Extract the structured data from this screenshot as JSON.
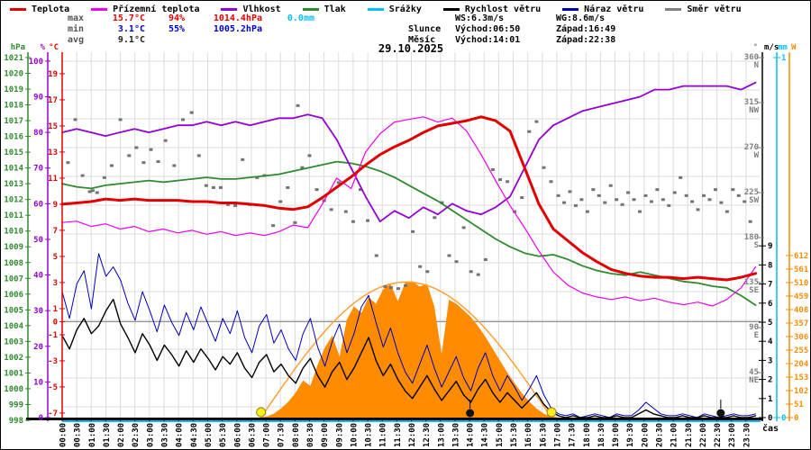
{
  "title_date": "29.10.2025",
  "legend": {
    "items": [
      {
        "label": "Teplota",
        "color": "#e00000"
      },
      {
        "label": "Přízemní teplota",
        "color": "#ee00ee"
      },
      {
        "label": "Vlhkost",
        "color": "#9400d3"
      },
      {
        "label": "Tlak",
        "color": "#2e8b2e"
      },
      {
        "label": "Srážky",
        "color": "#00bfff"
      },
      {
        "label": "Rychlost větru",
        "color": "#000000"
      },
      {
        "label": "Náraz větru",
        "color": "#0000bb"
      },
      {
        "label": "Směr větru",
        "color": "#808080"
      }
    ]
  },
  "stats": {
    "max": {
      "label": "max",
      "temp": "15.7°C",
      "hum": "94%",
      "press": "1014.4hPa",
      "rain": "0.0mm"
    },
    "min": {
      "label": "min",
      "temp": "3.1°C",
      "hum": "55%",
      "press": "1005.2hPa"
    },
    "avg": {
      "label": "avg",
      "temp": "9.1°C"
    }
  },
  "wind_summary": {
    "ws": "WS:6.3m/s",
    "wg": "WG:8.6m/s"
  },
  "sun": {
    "label": "Slunce",
    "rise": "Východ:06:50",
    "set": "Západ:16:49"
  },
  "moon": {
    "label": "Měsíc",
    "rise": "Východ:14:01",
    "set": "Západ:22:38"
  },
  "colors": {
    "temperature": "#e00000",
    "ground_temperature": "#ee00ee",
    "humidity": "#9400d3",
    "pressure": "#2e8b2e",
    "precipitation": "#00bfff",
    "wind_speed": "#000000",
    "wind_gust": "#0000bb",
    "wind_direction": "#737373",
    "solar": "#ff8c00",
    "solar_theoretical": "#ffa033",
    "axis_hpa": "#2e8b2e",
    "axis_pct": "#9400d3",
    "axis_temp": "#e00000",
    "axis_dir": "#808080",
    "axis_ms": "#000000",
    "axis_mm": "#00bfff",
    "axis_w": "#ff8c00",
    "grid": "#dcdcdc",
    "zero_line": "#808080",
    "stat_label": "#555555",
    "stat_max": "#e00000",
    "stat_min": "#0000cc",
    "stat_avg": "#222222",
    "sun_marker": "#ffee22",
    "moon_marker": "#111111"
  },
  "chart_data": {
    "type": "line",
    "title": "29.10.2025",
    "x_range": 24,
    "units": {
      "hpa": "hPa",
      "pct": "%",
      "temp": "°C",
      "dir": "°",
      "ms": "m/s",
      "mm": "mm",
      "w": "W",
      "time": "čas"
    },
    "axes": {
      "temp": {
        "min": -7.35,
        "max": 20.65
      },
      "pct": {
        "min": 0,
        "max": 102.5
      },
      "hpa": {
        "min": 998.17,
        "max": 1021.34
      },
      "dir": {
        "min": 0,
        "max": 365.4
      },
      "ms": {
        "min": 0,
        "max": 19.15
      },
      "mm": {
        "min": 0,
        "max": 1.015
      },
      "w": {
        "min": 0,
        "max": 1380
      }
    },
    "hpa_ticks": [
      1021,
      1020,
      1019,
      1018,
      1017,
      1016,
      1015,
      1014,
      1013,
      1012,
      1011,
      1010,
      1009,
      1008,
      1007,
      1006,
      1005,
      1004,
      1003,
      1002,
      1001,
      1000,
      999,
      998
    ],
    "pct_ticks": [
      100,
      90,
      80,
      70,
      60,
      50,
      40,
      30,
      20,
      10,
      0
    ],
    "temp_ticks": [
      19,
      17,
      15,
      13,
      11,
      9,
      7,
      5,
      3,
      1,
      0,
      -1,
      -3,
      -5,
      -7
    ],
    "dir_ticks": [
      [
        360,
        "N"
      ],
      [
        315,
        "NW"
      ],
      [
        270,
        "W"
      ],
      [
        225,
        "SW"
      ],
      [
        180,
        "S"
      ],
      [
        135,
        "SE"
      ],
      [
        90,
        "E"
      ],
      [
        45,
        "NE"
      ]
    ],
    "ms_ticks": [
      9,
      8,
      7,
      6,
      5,
      4,
      3,
      2,
      1,
      0
    ],
    "mm_ticks": [
      1,
      0
    ],
    "w_ticks": [
      612,
      561,
      510,
      459,
      408,
      357,
      306,
      255,
      204,
      153,
      102,
      51,
      0
    ],
    "x_tick_labels": [
      "00:00",
      "00:30",
      "01:00",
      "01:30",
      "02:00",
      "02:30",
      "03:00",
      "03:30",
      "04:00",
      "04:30",
      "05:00",
      "05:30",
      "06:00",
      "06:30",
      "07:00",
      "07:30",
      "08:00",
      "08:30",
      "09:00",
      "09:30",
      "10:00",
      "10:30",
      "11:00",
      "11:30",
      "12:00",
      "12:30",
      "13:00",
      "13:30",
      "14:00",
      "14:30",
      "15:00",
      "15:30",
      "16:00",
      "16:30",
      "17:00",
      "17:30",
      "18:00",
      "18:30",
      "19:00",
      "19:30",
      "20:00",
      "20:30",
      "21:00",
      "21:30",
      "22:00",
      "22:30",
      "23:00",
      "23:30"
    ],
    "series": {
      "temperature": {
        "axis": "temp",
        "dt": 0.4965,
        "values": [
          9.0,
          9.1,
          9.2,
          9.4,
          9.3,
          9.4,
          9.3,
          9.3,
          9.3,
          9.2,
          9.2,
          9.1,
          9.1,
          9.0,
          8.9,
          8.7,
          8.6,
          8.8,
          9.5,
          10.3,
          11.1,
          12.0,
          12.8,
          13.4,
          13.9,
          14.5,
          15.0,
          15.2,
          15.4,
          15.7,
          15.4,
          14.6,
          11.8,
          9.0,
          7.1,
          6.2,
          5.3,
          4.6,
          4.0,
          3.7,
          3.5,
          3.4,
          3.4,
          3.3,
          3.4,
          3.3,
          3.2,
          3.4,
          3.7
        ]
      },
      "ground_temperature": {
        "axis": "temp",
        "dt": 0.4965,
        "values": [
          7.6,
          7.7,
          7.3,
          7.5,
          7.1,
          7.3,
          6.9,
          7.1,
          6.8,
          7.0,
          6.7,
          6.9,
          6.6,
          6.8,
          6.6,
          6.9,
          7.4,
          7.2,
          9.0,
          11.0,
          10.2,
          13.0,
          14.4,
          15.3,
          15.5,
          15.7,
          15.3,
          15.6,
          14.6,
          12.8,
          10.8,
          8.9,
          7.2,
          5.4,
          3.8,
          2.8,
          2.2,
          1.9,
          1.7,
          1.9,
          1.6,
          1.8,
          1.5,
          1.3,
          1.5,
          1.2,
          1.7,
          2.6,
          4.2
        ]
      },
      "humidity": {
        "axis": "pct",
        "dt": 0.4965,
        "values": [
          80,
          81,
          80,
          79,
          80,
          81,
          80,
          81,
          82,
          82,
          83,
          82,
          83,
          82,
          83,
          84,
          84,
          85,
          84,
          78,
          70,
          62,
          55,
          58,
          56,
          59,
          57,
          60,
          58,
          57,
          59,
          62,
          70,
          78,
          82,
          84,
          86,
          87,
          88,
          89,
          90,
          92,
          92,
          93,
          93,
          93,
          93,
          92,
          94
        ]
      },
      "pressure": {
        "axis": "hpa",
        "dt": 0.4965,
        "values": [
          1013.0,
          1012.8,
          1012.7,
          1012.9,
          1013.0,
          1013.1,
          1013.2,
          1013.1,
          1013.2,
          1013.3,
          1013.4,
          1013.3,
          1013.3,
          1013.4,
          1013.5,
          1013.6,
          1013.8,
          1014.0,
          1014.2,
          1014.4,
          1014.3,
          1014.1,
          1013.8,
          1013.4,
          1012.9,
          1012.4,
          1011.9,
          1011.3,
          1010.7,
          1010.1,
          1009.5,
          1009.0,
          1008.6,
          1008.4,
          1008.5,
          1008.2,
          1007.8,
          1007.5,
          1007.3,
          1007.2,
          1007.4,
          1007.2,
          1007.0,
          1006.8,
          1006.7,
          1006.5,
          1006.4,
          1005.9,
          1005.3
        ]
      },
      "wind_speed": {
        "axis": "ms",
        "dt": 0.2508,
        "values": [
          4.3,
          3.6,
          4.6,
          5.2,
          4.4,
          4.8,
          5.6,
          6.2,
          4.9,
          4.2,
          3.4,
          4.4,
          3.8,
          3.0,
          3.8,
          3.3,
          2.7,
          3.5,
          2.9,
          3.6,
          3.1,
          2.5,
          3.2,
          2.8,
          3.4,
          2.6,
          2.1,
          2.9,
          3.3,
          2.4,
          2.8,
          2.2,
          1.8,
          2.6,
          3.1,
          2.2,
          1.6,
          2.4,
          2.9,
          2.0,
          2.6,
          3.4,
          4.2,
          3.0,
          2.2,
          2.8,
          2.0,
          1.4,
          1.0,
          1.6,
          2.2,
          1.5,
          0.9,
          1.4,
          1.9,
          1.2,
          0.8,
          1.5,
          2.0,
          1.3,
          0.8,
          1.3,
          0.9,
          0.5,
          0.9,
          1.3,
          0.7,
          0.3,
          0.1,
          0.0,
          0.1,
          0.0,
          0.0,
          0.1,
          0.0,
          0.0,
          0.1,
          0.0,
          0.0,
          0.2,
          0.4,
          0.2,
          0.1,
          0.0,
          0.0,
          0.1,
          0.0,
          0.0,
          0.1,
          0.0,
          0.0,
          0.0,
          0.1,
          0.0,
          0.0,
          0.1
        ]
      },
      "wind_gust": {
        "axis": "ms",
        "dt": 0.2508,
        "values": [
          6.6,
          5.2,
          7.0,
          7.7,
          5.7,
          8.6,
          7.4,
          7.9,
          7.2,
          6.0,
          5.1,
          6.6,
          5.6,
          4.5,
          5.9,
          5.0,
          4.3,
          5.5,
          4.6,
          5.8,
          4.9,
          4.0,
          5.2,
          4.4,
          5.6,
          4.2,
          3.4,
          4.8,
          5.4,
          3.9,
          4.6,
          3.6,
          3.0,
          4.4,
          5.2,
          3.7,
          2.7,
          4.0,
          4.9,
          3.4,
          4.4,
          5.8,
          6.4,
          5.0,
          3.7,
          4.7,
          3.4,
          2.4,
          1.8,
          2.8,
          3.8,
          2.6,
          1.6,
          2.4,
          3.2,
          2.1,
          1.4,
          2.6,
          3.4,
          2.2,
          1.4,
          2.2,
          1.6,
          0.9,
          1.5,
          2.2,
          1.2,
          0.5,
          0.2,
          0.1,
          0.2,
          0.0,
          0.1,
          0.2,
          0.1,
          0.0,
          0.2,
          0.1,
          0.1,
          0.4,
          0.8,
          0.5,
          0.2,
          0.1,
          0.1,
          0.2,
          0.1,
          0.0,
          0.2,
          0.1,
          0.0,
          0.1,
          0.2,
          0.1,
          0.1,
          0.2
        ]
      },
      "solar_radiation": {
        "axis": "w",
        "dt": 0.2508,
        "values": [
          0,
          0,
          0,
          0,
          0,
          0,
          0,
          0,
          0,
          0,
          0,
          0,
          0,
          0,
          0,
          0,
          0,
          0,
          0,
          0,
          0,
          0,
          0,
          0,
          0,
          0,
          0,
          0,
          4,
          15,
          35,
          60,
          95,
          140,
          120,
          200,
          265,
          310,
          230,
          370,
          420,
          395,
          455,
          430,
          485,
          505,
          440,
          510,
          515,
          495,
          505,
          420,
          240,
          445,
          430,
          405,
          380,
          345,
          305,
          260,
          215,
          170,
          130,
          92,
          60,
          34,
          15,
          4,
          0,
          0,
          0,
          0,
          0,
          0,
          0,
          0,
          0,
          0,
          0,
          0,
          0,
          0,
          0,
          0,
          0,
          0,
          0,
          0,
          0,
          0,
          0,
          0,
          0,
          0,
          0,
          0
        ]
      },
      "solar_theoretical": {
        "axis": "w",
        "sunrise": 6.833,
        "sunset": 16.817,
        "peak": 512
      },
      "precipitation": {
        "axis": "mm",
        "value": 0
      },
      "wind_direction_points": [
        [
          0.2,
          255
        ],
        [
          0.45,
          298
        ],
        [
          0.7,
          242
        ],
        [
          0.95,
          226
        ],
        [
          1.05,
          227
        ],
        [
          1.2,
          225
        ],
        [
          1.45,
          240
        ],
        [
          1.7,
          252
        ],
        [
          2.0,
          298
        ],
        [
          2.3,
          262
        ],
        [
          2.55,
          270
        ],
        [
          2.8,
          255
        ],
        [
          3.05,
          268
        ],
        [
          3.3,
          256
        ],
        [
          3.55,
          277
        ],
        [
          3.85,
          252
        ],
        [
          4.15,
          298
        ],
        [
          4.45,
          305
        ],
        [
          4.7,
          262
        ],
        [
          4.95,
          232
        ],
        [
          5.2,
          230
        ],
        [
          5.45,
          230
        ],
        [
          5.7,
          213
        ],
        [
          5.95,
          212
        ],
        [
          6.2,
          258
        ],
        [
          6.45,
          213
        ],
        [
          6.7,
          240
        ],
        [
          6.95,
          242
        ],
        [
          7.25,
          192
        ],
        [
          7.5,
          216
        ],
        [
          7.75,
          230
        ],
        [
          8.0,
          195
        ],
        [
          8.1,
          312
        ],
        [
          8.25,
          250
        ],
        [
          8.5,
          262
        ],
        [
          8.75,
          228
        ],
        [
          9.0,
          217
        ],
        [
          9.25,
          208
        ],
        [
          9.5,
          235
        ],
        [
          9.75,
          206
        ],
        [
          10.0,
          196
        ],
        [
          10.25,
          228
        ],
        [
          10.5,
          197
        ],
        [
          10.8,
          162
        ],
        [
          11.1,
          131
        ],
        [
          11.3,
          130
        ],
        [
          11.55,
          129
        ],
        [
          11.8,
          132
        ],
        [
          12.05,
          186
        ],
        [
          12.3,
          151
        ],
        [
          12.55,
          146
        ],
        [
          12.8,
          200
        ],
        [
          13.05,
          215
        ],
        [
          13.3,
          162
        ],
        [
          13.55,
          156
        ],
        [
          13.8,
          190
        ],
        [
          14.05,
          146
        ],
        [
          14.3,
          143
        ],
        [
          14.55,
          158
        ],
        [
          14.8,
          248
        ],
        [
          15.05,
          238
        ],
        [
          15.3,
          236
        ],
        [
          15.55,
          206
        ],
        [
          15.8,
          220
        ],
        [
          16.05,
          286
        ],
        [
          16.3,
          296
        ],
        [
          16.55,
          250
        ],
        [
          16.8,
          236
        ],
        [
          17.05,
          222
        ],
        [
          17.25,
          215
        ],
        [
          17.45,
          226
        ],
        [
          17.65,
          212
        ],
        [
          17.85,
          218
        ],
        [
          18.05,
          206
        ],
        [
          18.25,
          228
        ],
        [
          18.45,
          222
        ],
        [
          18.65,
          215
        ],
        [
          18.85,
          232
        ],
        [
          19.05,
          218
        ],
        [
          19.25,
          213
        ],
        [
          19.45,
          225
        ],
        [
          19.65,
          218
        ],
        [
          19.85,
          206
        ],
        [
          20.05,
          222
        ],
        [
          20.25,
          216
        ],
        [
          20.45,
          228
        ],
        [
          20.65,
          218
        ],
        [
          20.85,
          212
        ],
        [
          21.05,
          225
        ],
        [
          21.25,
          240
        ],
        [
          21.45,
          222
        ],
        [
          21.65,
          216
        ],
        [
          21.85,
          208
        ],
        [
          22.05,
          222
        ],
        [
          22.25,
          218
        ],
        [
          22.45,
          228
        ],
        [
          22.65,
          215
        ],
        [
          22.85,
          206
        ],
        [
          23.05,
          228
        ],
        [
          23.25,
          222
        ],
        [
          23.45,
          216
        ],
        [
          23.65,
          196
        ]
      ]
    },
    "markers": {
      "sun_rise": 6.833,
      "sun_set": 16.817,
      "moon_rise": 14.017,
      "moon_set": 22.633
    }
  }
}
